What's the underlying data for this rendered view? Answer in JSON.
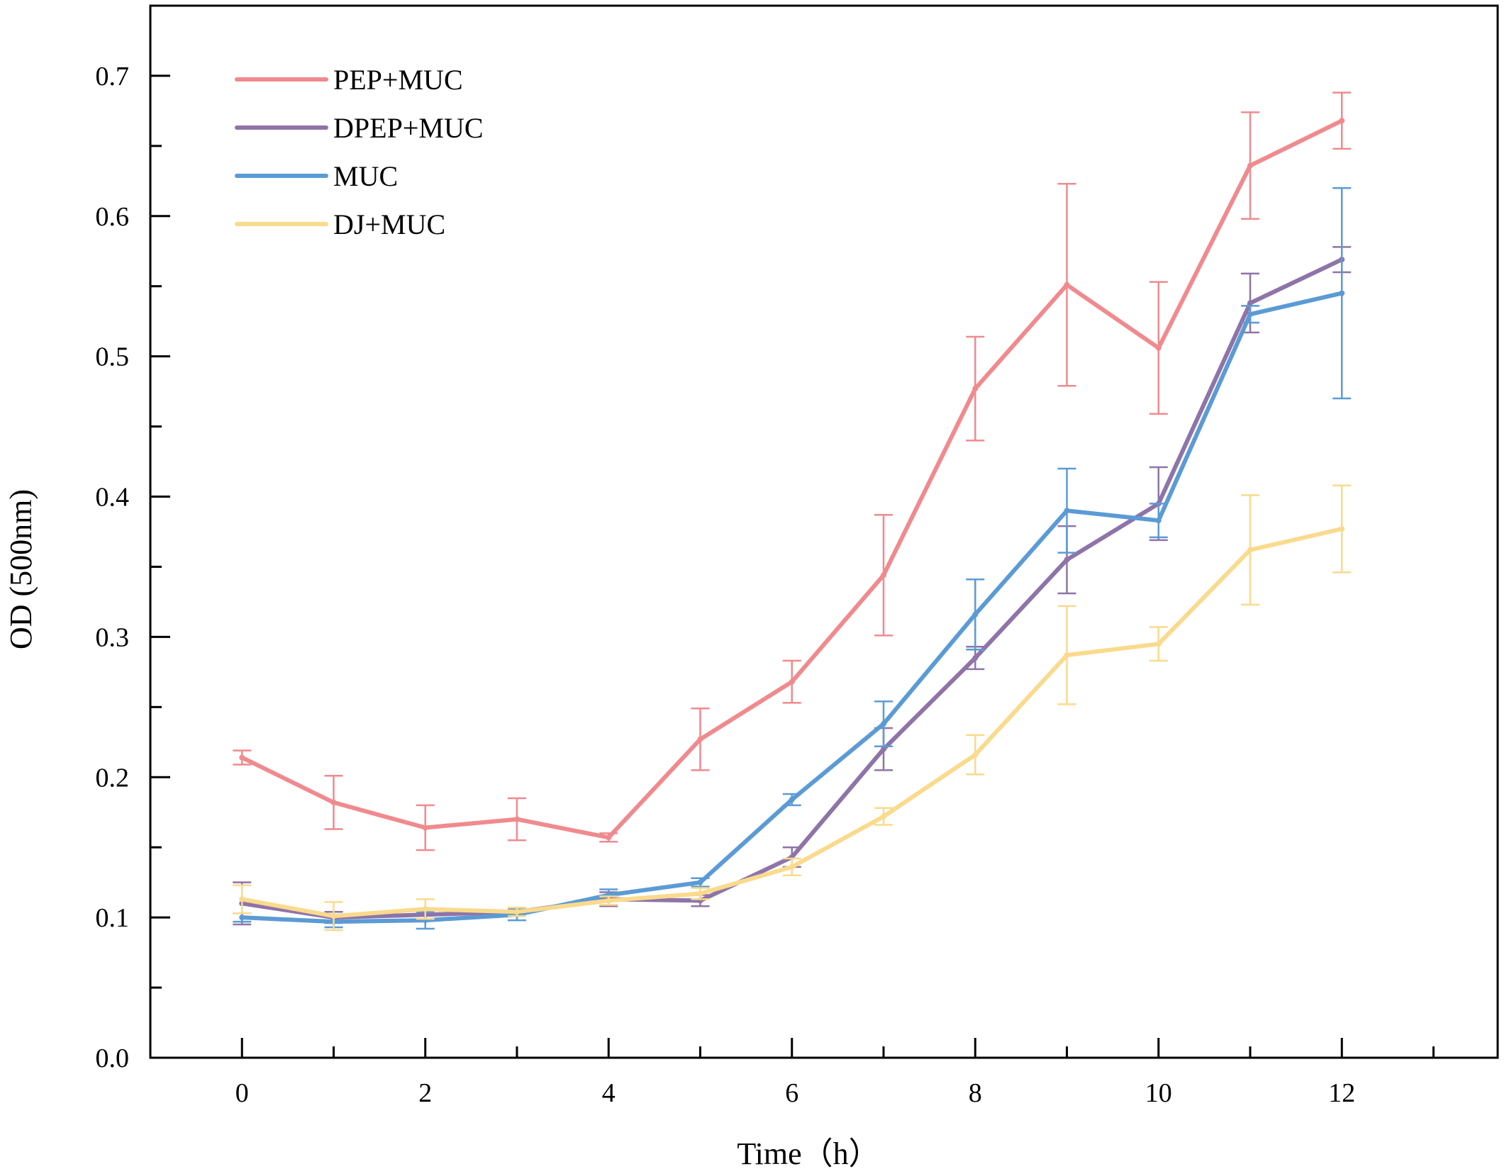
{
  "chart_data": {
    "type": "line",
    "title": "",
    "xlabel": "Time（h）",
    "ylabel": "OD (500nm)",
    "xlim": [
      -1,
      13.7
    ],
    "ylim": [
      0.0,
      0.75
    ],
    "xticks": [
      0,
      2,
      4,
      6,
      8,
      10,
      12
    ],
    "xtick_labels": [
      "0",
      "2",
      "4",
      "6",
      "8",
      "10",
      "12"
    ],
    "yticks": [
      0.0,
      0.1,
      0.2,
      0.3,
      0.4,
      0.5,
      0.6,
      0.7
    ],
    "ytick_labels": [
      "0.0",
      "0.1",
      "0.2",
      "0.3",
      "0.4",
      "0.5",
      "0.6",
      "0.7"
    ],
    "grid": false,
    "legend": "top-left",
    "x": [
      0,
      1,
      2,
      3,
      4,
      5,
      6,
      7,
      8,
      9,
      10,
      11,
      12
    ],
    "series": [
      {
        "name": "PEP+MUC",
        "color": "#F08A8E",
        "values": [
          0.214,
          0.182,
          0.164,
          0.17,
          0.157,
          0.227,
          0.268,
          0.344,
          0.477,
          0.551,
          0.506,
          0.636,
          0.668
        ],
        "errors": [
          0.005,
          0.019,
          0.016,
          0.015,
          0.003,
          0.022,
          0.015,
          0.043,
          0.037,
          0.072,
          0.047,
          0.038,
          0.02
        ]
      },
      {
        "name": "DPEP+MUC",
        "color": "#8E74A8",
        "values": [
          0.11,
          0.1,
          0.102,
          0.104,
          0.113,
          0.112,
          0.143,
          0.22,
          0.285,
          0.355,
          0.395,
          0.538,
          0.569
        ],
        "errors": [
          0.015,
          0.004,
          0.004,
          0.003,
          0.005,
          0.004,
          0.007,
          0.015,
          0.008,
          0.024,
          0.026,
          0.021,
          0.009
        ]
      },
      {
        "name": "MUC",
        "color": "#5B9BD5",
        "values": [
          0.1,
          0.097,
          0.098,
          0.102,
          0.116,
          0.125,
          0.184,
          0.238,
          0.316,
          0.39,
          0.383,
          0.53,
          0.545
        ],
        "errors": [
          0.003,
          0.004,
          0.006,
          0.004,
          0.004,
          0.003,
          0.004,
          0.016,
          0.025,
          0.03,
          0.012,
          0.006,
          0.075
        ]
      },
      {
        "name": "DJ+MUC",
        "color": "#FADA8C",
        "values": [
          0.113,
          0.101,
          0.106,
          0.104,
          0.112,
          0.117,
          0.136,
          0.172,
          0.216,
          0.287,
          0.295,
          0.362,
          0.377
        ],
        "errors": [
          0.01,
          0.01,
          0.007,
          0.003,
          0.003,
          0.004,
          0.006,
          0.006,
          0.014,
          0.035,
          0.012,
          0.039,
          0.031
        ]
      }
    ]
  }
}
